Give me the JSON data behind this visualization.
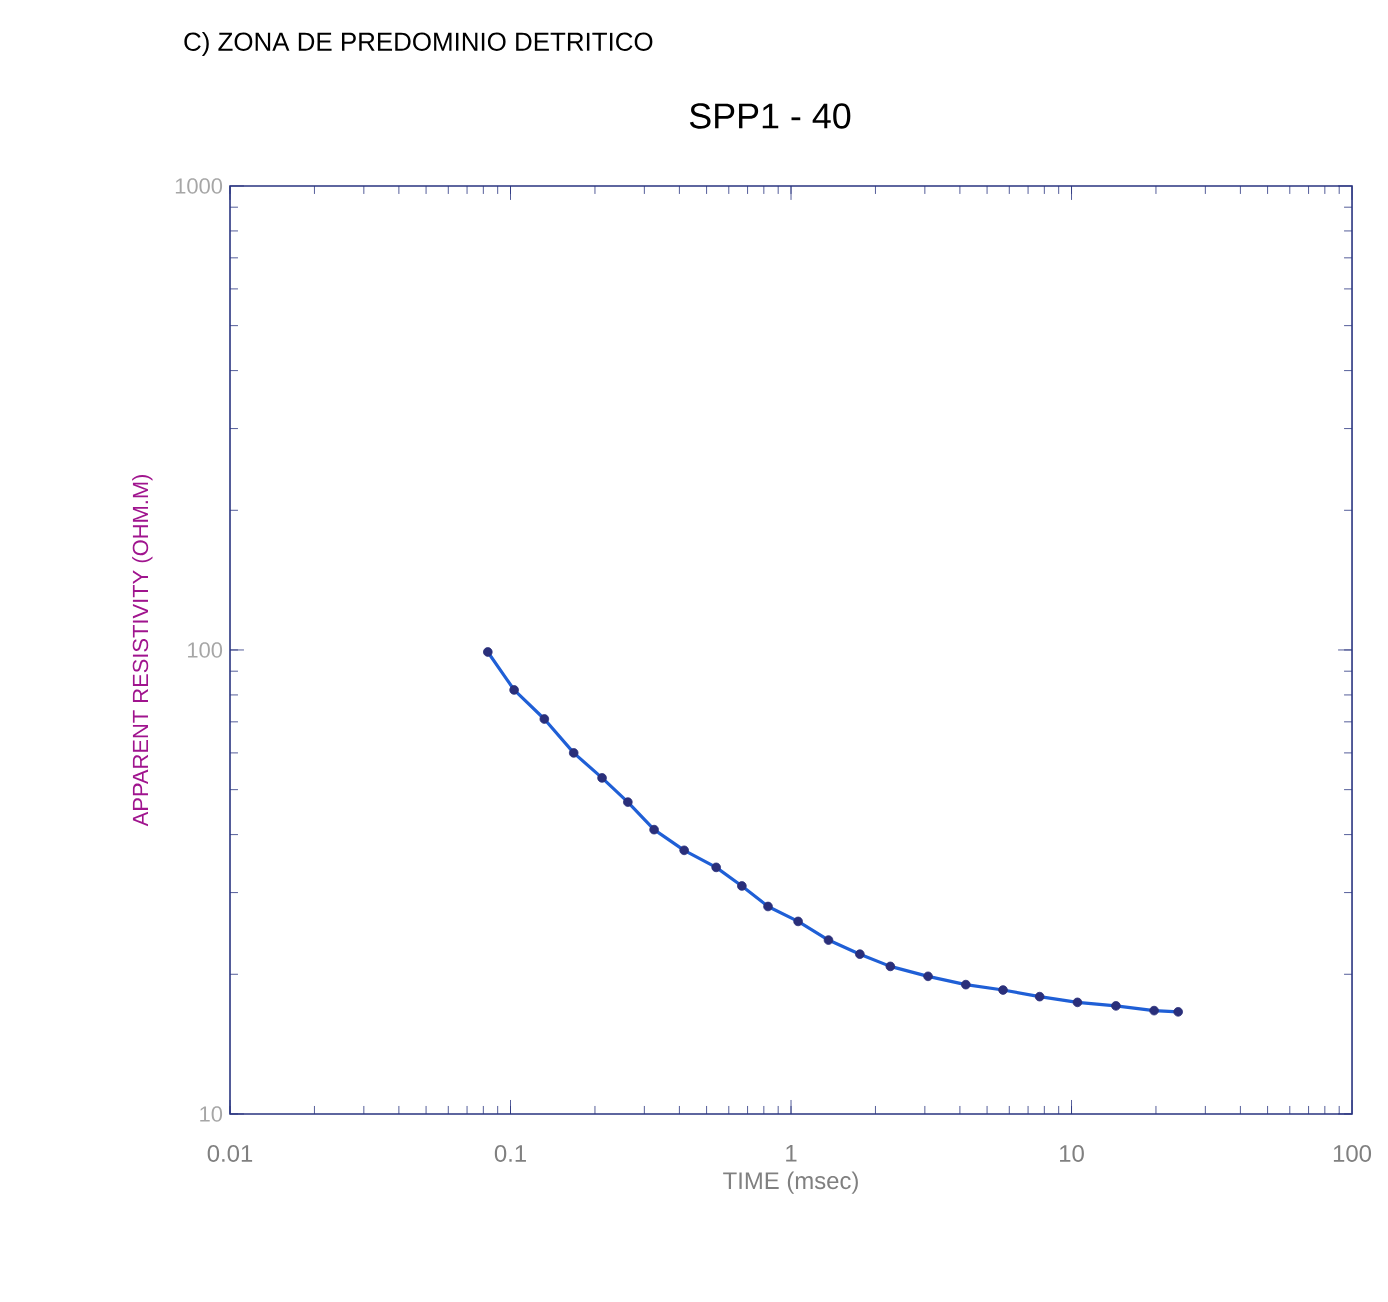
{
  "chart_data": {
    "type": "line",
    "title": "C) ZONA DE PREDOMINIO DETRITICO",
    "subtitle": "SPP1 - 40",
    "xlabel": "TIME (msec)",
    "ylabel": "APPARENT RESISTIVITY (OHM.M)",
    "log": "xy",
    "xlim": [
      0.01,
      100
    ],
    "ylim": [
      10,
      1000
    ],
    "xticks": [
      0.01,
      0.1,
      1,
      10,
      100
    ],
    "yticks": [
      10,
      100,
      1000
    ],
    "grid": false,
    "x": [
      0.083,
      0.103,
      0.132,
      0.168,
      0.212,
      0.262,
      0.325,
      0.416,
      0.541,
      0.668,
      0.828,
      1.06,
      1.36,
      1.76,
      2.26,
      3.08,
      4.2,
      5.7,
      7.7,
      10.5,
      14.4,
      19.7,
      24
    ],
    "series": [
      {
        "type": "line",
        "color": "#1f5fd6",
        "line_style": "solid",
        "marker": "none",
        "values": [
          99,
          82,
          71,
          60,
          53,
          47,
          41,
          37,
          34,
          31,
          28,
          26,
          23.7,
          22.1,
          20.8,
          19.8,
          19.0,
          18.5,
          17.9,
          17.4,
          17.1,
          16.7,
          16.6
        ]
      },
      {
        "type": "scatter",
        "color": "#2a2f7a",
        "marker": "circle",
        "values": [
          99,
          82,
          71,
          60,
          53,
          47,
          41,
          37,
          34,
          31,
          28,
          26,
          23.7,
          22.1,
          20.8,
          19.8,
          19.0,
          18.5,
          17.9,
          17.4,
          17.1,
          16.7,
          16.6
        ]
      }
    ]
  }
}
